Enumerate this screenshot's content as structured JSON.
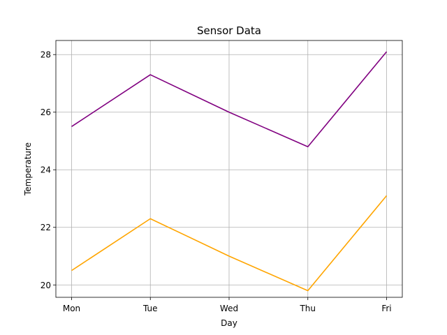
{
  "chart_data": {
    "type": "line",
    "title": "Sensor Data",
    "xlabel": "Day",
    "ylabel": "Temperature",
    "categories": [
      "Mon",
      "Tue",
      "Wed",
      "Thu",
      "Fri"
    ],
    "yticks": [
      20,
      22,
      24,
      26,
      28
    ],
    "ylim": [
      19.57,
      28.49
    ],
    "grid": true,
    "series": [
      {
        "values": [
          25.5,
          27.3,
          26.0,
          24.8,
          28.1
        ],
        "color": "#800080"
      },
      {
        "values": [
          20.5,
          22.3,
          21.0,
          19.8,
          23.1
        ],
        "color": "#ffa500"
      }
    ]
  }
}
